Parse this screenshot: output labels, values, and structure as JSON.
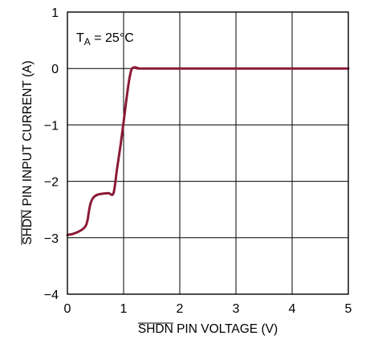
{
  "colors": {
    "series": "#8b1a36",
    "axes": "#000000",
    "background": "#ffffff"
  },
  "chart_data": {
    "type": "line",
    "title": "",
    "xlabel": "SHDN PIN VOLTAGE (V)",
    "ylabel": "SHDN PIN INPUT CURRENT (A)",
    "overlined_word": "SHDN",
    "xlim": [
      0,
      5
    ],
    "ylim": [
      -4,
      1
    ],
    "xticks": [
      0,
      1,
      2,
      3,
      4,
      5
    ],
    "xtick_labels": [
      "0",
      "1",
      "2",
      "3",
      "4",
      "5"
    ],
    "yticks": [
      1,
      0,
      -1,
      -2,
      -3,
      -4
    ],
    "ytick_labels": [
      "1",
      "0",
      "−1",
      "−2",
      "−3",
      "−4"
    ],
    "grid": true,
    "annotation": {
      "base": "T",
      "sub": "A",
      "rest": " = 25°C"
    },
    "series": [
      {
        "color": "#8b1a36",
        "points": [
          [
            0,
            -2.95
          ],
          [
            0.1,
            -2.93
          ],
          [
            0.2,
            -2.89
          ],
          [
            0.28,
            -2.84
          ],
          [
            0.33,
            -2.78
          ],
          [
            0.36,
            -2.68
          ],
          [
            0.38,
            -2.55
          ],
          [
            0.41,
            -2.4
          ],
          [
            0.46,
            -2.29
          ],
          [
            0.53,
            -2.24
          ],
          [
            0.62,
            -2.22
          ],
          [
            0.73,
            -2.21
          ],
          [
            0.82,
            -2.21
          ],
          [
            0.88,
            -1.8
          ],
          [
            0.94,
            -1.4
          ],
          [
            1.0,
            -0.95
          ],
          [
            1.05,
            -0.55
          ],
          [
            1.1,
            -0.2
          ],
          [
            1.14,
            -0.02
          ],
          [
            1.19,
            0.02
          ],
          [
            1.25,
            0.01
          ],
          [
            1.3,
            0.0
          ],
          [
            2.0,
            0.0
          ],
          [
            3.0,
            0.0
          ],
          [
            4.0,
            0.0
          ],
          [
            5.0,
            0.0
          ]
        ]
      }
    ]
  }
}
